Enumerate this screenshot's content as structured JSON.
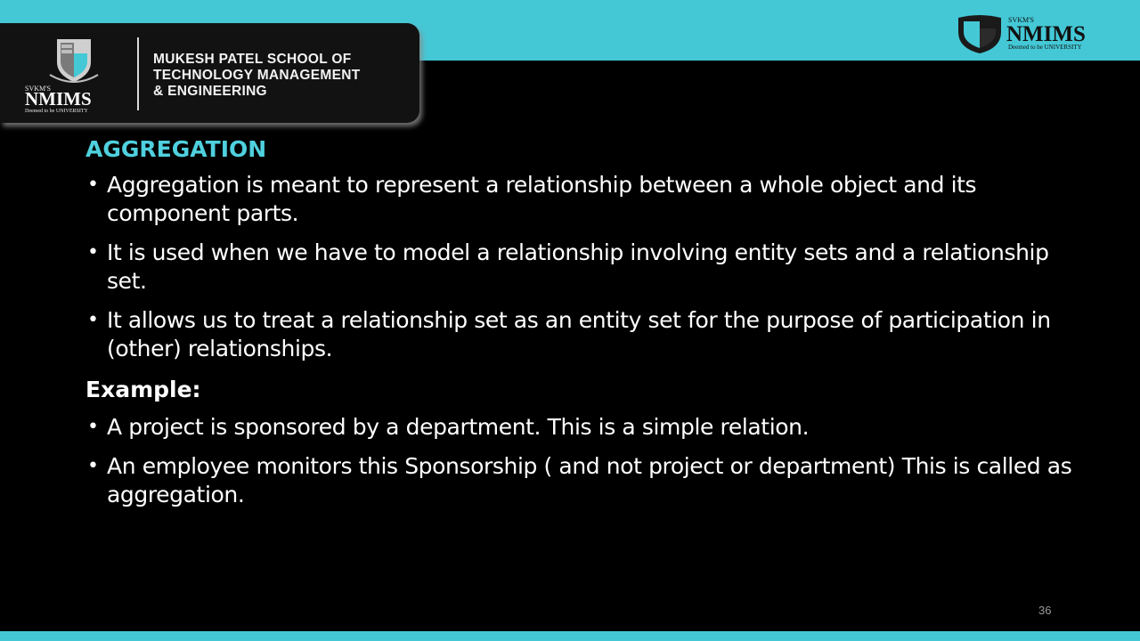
{
  "header": {
    "school_lines": [
      "MUKESH PATEL SCHOOL OF",
      "TECHNOLOGY MANAGEMENT",
      "& ENGINEERING"
    ],
    "logo_left": {
      "svkms": "SVKM'S",
      "name": "NMIMS",
      "tagline": "Deemed to be UNIVERSITY"
    },
    "logo_right": {
      "svkms": "SVKM'S",
      "name": "NMIMS",
      "tagline": "Deemed to be UNIVERSITY"
    }
  },
  "slide": {
    "title": "AGGREGATION",
    "bullets": [
      "Aggregation is meant to represent a relationship between a whole object and its component parts.",
      "It is used when we have to model a relationship involving entity sets and a relationship set.",
      "It allows us to treat a relationship set as an entity set for the purpose of participation in (other) relationships."
    ],
    "example_label": "Example:",
    "example_bullets": [
      "A project is sponsored by a department. This is a simple relation.",
      "An employee monitors this Sponsorship ( and not project or department) This is called as aggregation."
    ],
    "page_number": "36"
  },
  "colors": {
    "accent_band": "#44c8d6",
    "heading": "#4fd0de",
    "background": "#000000"
  },
  "icons": [
    "nmims-shield-logo"
  ]
}
